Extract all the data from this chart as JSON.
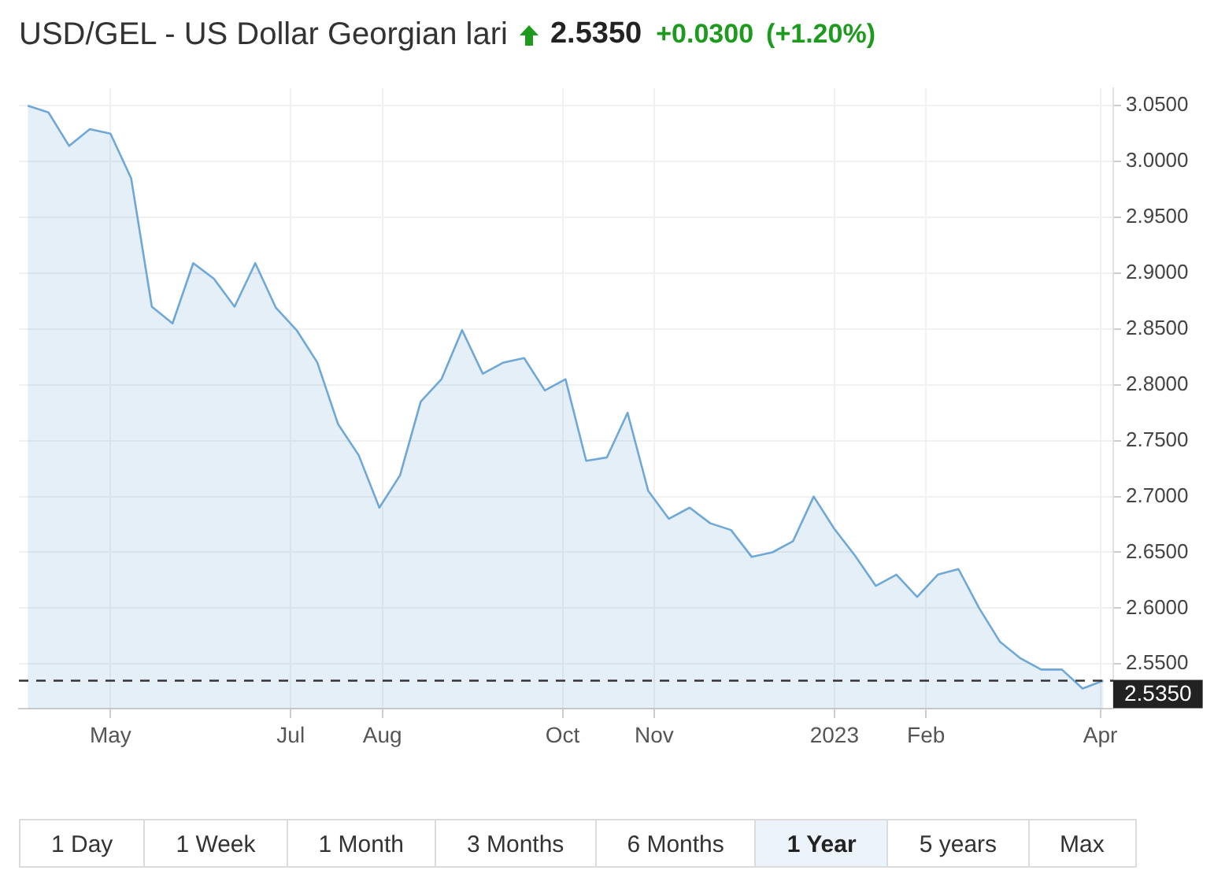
{
  "chart_data": {
    "type": "area",
    "title": "USD/GEL - US Dollar Georgian lari",
    "subtitle": "2.5350",
    "annotations": [
      "+0.0300",
      "(+1.20%)",
      "1 Day",
      "1 Week",
      "1 Month",
      "3 Months",
      "6 Months",
      "1 Year",
      "5 years",
      "Max"
    ],
    "x": [
      "2022-04-03",
      "2022-04-10",
      "2022-04-17",
      "2022-04-24",
      "2022-05-01",
      "2022-05-08",
      "2022-05-15",
      "2022-05-22",
      "2022-05-29",
      "2022-06-05",
      "2022-06-12",
      "2022-06-19",
      "2022-06-26",
      "2022-07-03",
      "2022-07-10",
      "2022-07-17",
      "2022-07-24",
      "2022-07-31",
      "2022-08-07",
      "2022-08-14",
      "2022-08-21",
      "2022-08-28",
      "2022-09-04",
      "2022-09-11",
      "2022-09-18",
      "2022-09-25",
      "2022-10-02",
      "2022-10-09",
      "2022-10-16",
      "2022-10-23",
      "2022-10-30",
      "2022-11-06",
      "2022-11-13",
      "2022-11-20",
      "2022-11-27",
      "2022-12-04",
      "2022-12-11",
      "2022-12-18",
      "2022-12-25",
      "2023-01-01",
      "2023-01-08",
      "2023-01-15",
      "2023-01-22",
      "2023-01-29",
      "2023-02-05",
      "2023-02-12",
      "2023-02-19",
      "2023-02-26",
      "2023-03-05",
      "2023-03-12",
      "2023-03-19",
      "2023-03-26",
      "2023-04-02"
    ],
    "series": [
      {
        "color": "#6fa8d6",
        "values": [
          3.05,
          3.044,
          3.014,
          3.029,
          3.025,
          2.985,
          2.87,
          2.855,
          2.909,
          2.895,
          2.87,
          2.909,
          2.869,
          2.849,
          2.82,
          2.765,
          2.737,
          2.69,
          2.719,
          2.785,
          2.805,
          2.849,
          2.81,
          2.82,
          2.824,
          2.795,
          2.805,
          2.732,
          2.735,
          2.775,
          2.705,
          2.68,
          2.69,
          2.676,
          2.67,
          2.646,
          2.65,
          2.66,
          2.7,
          2.671,
          2.647,
          2.62,
          2.63,
          2.61,
          2.63,
          2.635,
          2.6,
          2.57,
          2.555,
          2.545,
          2.545,
          2.528,
          2.535
        ]
      }
    ],
    "xlim": [
      "2022-03-31",
      "2023-04-05T09:00"
    ],
    "xticks": [
      {
        "value": "2022-05-01",
        "label": "May"
      },
      {
        "value": "2022-07-01",
        "label": "Jul"
      },
      {
        "value": "2022-08-01",
        "label": "Aug"
      },
      {
        "value": "2022-10-01",
        "label": "Oct"
      },
      {
        "value": "2022-11-01",
        "label": "Nov"
      },
      {
        "value": "2023-01-01",
        "label": "2023"
      },
      {
        "value": "2023-02-01",
        "label": "Feb"
      },
      {
        "value": "2023-04-01",
        "label": "Apr"
      }
    ],
    "ylim": [
      2.51,
      3.066
    ],
    "yticks": [
      {
        "value": 2.55,
        "label": "2.5500"
      },
      {
        "value": 2.6,
        "label": "2.6000"
      },
      {
        "value": 2.65,
        "label": "2.6500"
      },
      {
        "value": 2.7,
        "label": "2.7000"
      },
      {
        "value": 2.75,
        "label": "2.7500"
      },
      {
        "value": 2.8,
        "label": "2.8000"
      },
      {
        "value": 2.85,
        "label": "2.8500"
      },
      {
        "value": 2.9,
        "label": "2.9000"
      },
      {
        "value": 2.95,
        "label": "2.9500"
      },
      {
        "value": 3.0,
        "label": "3.0000"
      },
      {
        "value": 3.05,
        "label": "3.0500"
      }
    ],
    "ref_lines": [
      {
        "axis": "y",
        "value": 2.535,
        "label": "2.5350",
        "color": "#333333",
        "line_style": "dashed"
      }
    ],
    "grid": true,
    "marker": "none"
  }
}
